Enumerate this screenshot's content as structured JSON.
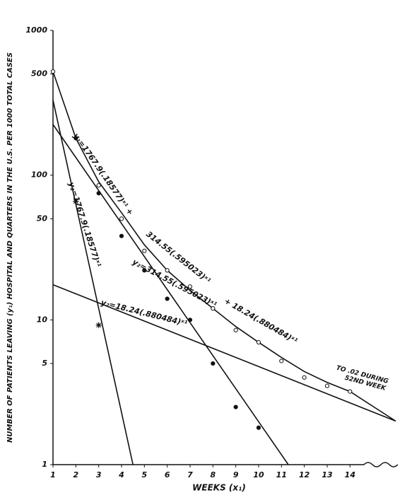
{
  "chart_data": {
    "type": "scatter",
    "y_label": "NUMBER OF PATIENTS LEAVING (y₁) HOSPITAL AND QUARTERS IN THE U.S. PER 1000 TOTAL CASES",
    "x_label": "WEEKS (x₁)",
    "log_y": true,
    "xlim": [
      1,
      16
    ],
    "xticks": [
      1,
      2,
      3,
      4,
      5,
      6,
      7,
      8,
      9,
      10,
      11,
      12,
      13,
      14
    ],
    "ylim": [
      1,
      1000
    ],
    "yticks": [
      1,
      5,
      10,
      50,
      100,
      500,
      1000
    ],
    "color": "#111111",
    "series": [
      {
        "marker": "open-circle",
        "x": [
          1,
          3,
          4,
          5,
          6,
          7,
          8,
          9,
          10,
          11,
          12,
          13,
          14
        ],
        "values": [
          520,
          85,
          50,
          30,
          22,
          17,
          12,
          8.5,
          7,
          5.2,
          4,
          3.5,
          3.2
        ]
      },
      {
        "marker": "filled-circle",
        "x": [
          2,
          3,
          4,
          5,
          6,
          7,
          8,
          9,
          10
        ],
        "values": [
          180,
          75,
          38,
          22,
          14,
          10,
          5,
          2.5,
          1.8
        ]
      },
      {
        "marker": "star",
        "x": [
          2,
          3
        ],
        "values": [
          66,
          9.2
        ]
      }
    ],
    "lines": [
      {
        "x": [
          1,
          4.5
        ],
        "values": [
          330,
          1
        ]
      },
      {
        "x": [
          1,
          11.3
        ],
        "values": [
          224,
          1
        ]
      },
      {
        "x": [
          1,
          16
        ],
        "values": [
          17.5,
          2
        ]
      },
      {
        "x": [
          1,
          2,
          3,
          4,
          5,
          6,
          7,
          8,
          9,
          10,
          11,
          12,
          13,
          14,
          16
        ],
        "values": [
          520,
          180,
          90,
          55,
          33,
          22,
          16,
          12,
          9,
          7,
          5.5,
          4.4,
          3.7,
          3.2,
          2
        ]
      }
    ],
    "annotations": [
      "y₁=1767.9(.18577)ˣ¹ +",
      "314.55(.595023)ˣ¹",
      "+ 18.24(.880484)ˣ¹",
      "y₂=1767.9(.18577)ˣ¹",
      "y₂=314.55(.595023)ˣ¹",
      "y₂=18.24(.880484)ˣ¹",
      "TO .02 DURING",
      "52ND WEEK"
    ]
  }
}
